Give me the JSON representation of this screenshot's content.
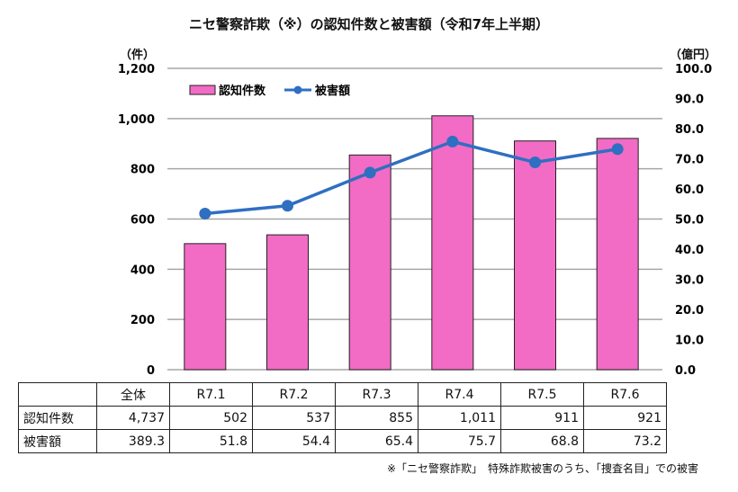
{
  "chart_data": {
    "type": "bar",
    "title": "ニセ警察詐欺（※）の認知件数と被害額（令和7年上半期）",
    "categories": [
      "R7.1",
      "R7.2",
      "R7.3",
      "R7.4",
      "R7.5",
      "R7.6"
    ],
    "series": [
      {
        "name": "認知件数",
        "type": "bar",
        "axis": "left",
        "color": "#F26BC5",
        "values": [
          502,
          537,
          855,
          1011,
          911,
          921
        ]
      },
      {
        "name": "被害額",
        "type": "line",
        "axis": "right",
        "color": "#2F6FC1",
        "values": [
          51.8,
          54.4,
          65.4,
          75.7,
          68.8,
          73.2
        ]
      }
    ],
    "left_axis": {
      "label": "（件）",
      "ylim": [
        0,
        1200
      ],
      "ticks": [
        "0",
        "200",
        "400",
        "600",
        "800",
        "1,000",
        "1,200"
      ]
    },
    "right_axis": {
      "label": "（億円）",
      "ylim": [
        0,
        100
      ],
      "ticks": [
        "0.0",
        "10.0",
        "20.0",
        "30.0",
        "40.0",
        "50.0",
        "60.0",
        "70.0",
        "80.0",
        "90.0",
        "100.0"
      ]
    },
    "legend_placement": "top-left",
    "grid": true
  },
  "table": {
    "headers": [
      "",
      "全体",
      "R7.1",
      "R7.2",
      "R7.3",
      "R7.4",
      "R7.5",
      "R7.6"
    ],
    "rows": [
      [
        "認知件数",
        "4,737",
        "502",
        "537",
        "855",
        "1,011",
        "911",
        "921"
      ],
      [
        "被害額",
        "389.3",
        "51.8",
        "54.4",
        "65.4",
        "75.7",
        "68.8",
        "73.2"
      ]
    ]
  },
  "note": "※「ニセ警察詐欺」　特殊詐欺被害のうち、「捜査名目」での被害"
}
